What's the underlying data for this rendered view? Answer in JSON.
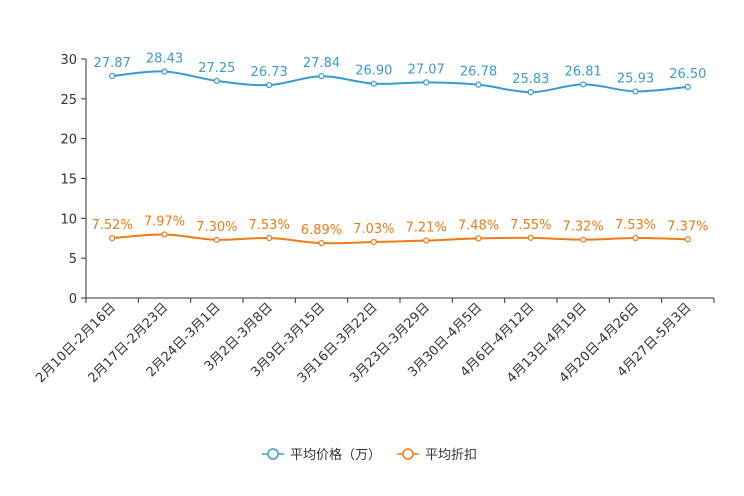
{
  "chart_data": {
    "type": "line",
    "title": "",
    "xlabel": "",
    "ylabel": "",
    "ylim": [
      0,
      30
    ],
    "yticks": [
      0,
      5,
      10,
      15,
      20,
      25,
      30
    ],
    "grid": false,
    "legend_position": "bottom-center",
    "categories": [
      "2月10日-2月16日",
      "2月17日-2月23日",
      "2月24日-3月1日",
      "3月2日-3月8日",
      "3月9日-3月15日",
      "3月16日-3月22日",
      "3月23日-3月29日",
      "3月30日-4月5日",
      "4月6日-4月12日",
      "4月13日-4月19日",
      "4月20日-4月26日",
      "4月27日-5月3日"
    ],
    "series": [
      {
        "name": "平均价格（万）",
        "color": "#3a9bd0",
        "values": [
          27.87,
          28.43,
          27.25,
          26.73,
          27.84,
          26.9,
          27.07,
          26.78,
          25.83,
          26.81,
          25.93,
          26.5
        ],
        "labels": [
          "27.87",
          "28.43",
          "27.25",
          "26.73",
          "27.84",
          "26.90",
          "27.07",
          "26.78",
          "25.83",
          "26.81",
          "25.93",
          "26.50"
        ]
      },
      {
        "name": "平均折扣",
        "color": "#f07a16",
        "values": [
          7.52,
          7.97,
          7.3,
          7.53,
          6.89,
          7.03,
          7.21,
          7.48,
          7.55,
          7.32,
          7.53,
          7.37
        ],
        "labels": [
          "7.52%",
          "7.97%",
          "7.30%",
          "7.53%",
          "6.89%",
          "7.03%",
          "7.21%",
          "7.48%",
          "7.55%",
          "7.32%",
          "7.53%",
          "7.37%"
        ]
      }
    ]
  }
}
